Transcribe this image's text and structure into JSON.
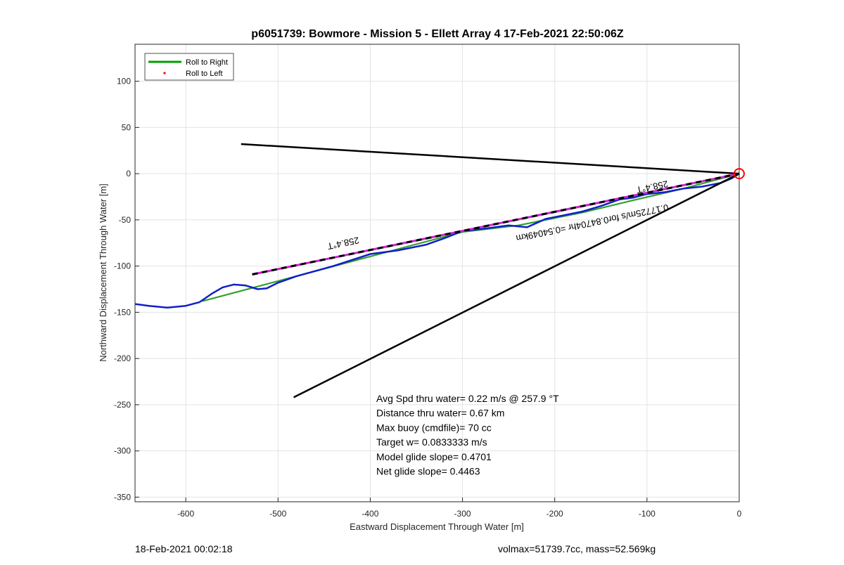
{
  "chart_data": {
    "type": "line",
    "title": "p6051739: Bowmore - Mission 5 - Ellett Array 4 17-Feb-2021 22:50:06Z",
    "xlabel": "Eastward Displacement Through Water [m]",
    "ylabel": "Northward Displacement Through Water [m]",
    "xlim": [
      -655,
      0
    ],
    "ylim": [
      -355,
      140
    ],
    "xticks": [
      -600,
      -500,
      -400,
      -300,
      -200,
      -100,
      0
    ],
    "yticks": [
      -350,
      -300,
      -250,
      -200,
      -150,
      -100,
      -50,
      0,
      50,
      100
    ],
    "grid": true,
    "legend": {
      "placement": "top-left",
      "entries": [
        {
          "label": "Roll to Right",
          "color": "#00a000",
          "style": "line"
        },
        {
          "label": "Roll to Left",
          "color": "#ff0000",
          "style": "dot"
        }
      ]
    },
    "series": [
      {
        "name": "Roll to Right",
        "color": "#33a02c",
        "x": [
          -582,
          -300,
          -240,
          -170,
          -120,
          -60,
          0
        ],
        "y": [
          -138,
          -63,
          -56,
          -42,
          -30,
          -16,
          0
        ]
      },
      {
        "color": "#1020c8",
        "x": [
          -655,
          -640,
          -620,
          -600,
          -585,
          -572,
          -560,
          -548,
          -535,
          -522,
          -512,
          -500,
          -480,
          -440,
          -400,
          -370,
          -340,
          -320,
          -300,
          -280,
          -250,
          -230,
          -210,
          -190,
          -170,
          -150,
          -130,
          -115,
          -100,
          -80,
          -60,
          -40,
          -20,
          -8,
          0
        ],
        "y": [
          -141,
          -143,
          -145,
          -143,
          -139,
          -130,
          -123,
          -120,
          -121,
          -125,
          -124,
          -118,
          -111,
          -100,
          -87,
          -83,
          -77,
          -70,
          -62,
          -60,
          -56,
          -58,
          -49,
          -45,
          -41,
          -35,
          -28,
          -26,
          -22,
          -20,
          -16,
          -14,
          -10,
          -5,
          0
        ]
      },
      {
        "color": "#000000",
        "x": [
          -540,
          0
        ],
        "y": [
          32,
          0
        ]
      },
      {
        "color": "#000000",
        "x": [
          -483,
          0
        ],
        "y": [
          -242,
          0
        ]
      },
      {
        "color": "#d020d0",
        "dashed": true,
        "x": [
          -528,
          0
        ],
        "y": [
          -109,
          0
        ]
      },
      {
        "color": "#ff0000",
        "marker": "circle",
        "x": [
          0
        ],
        "y": [
          0
        ]
      }
    ],
    "annotations": [
      {
        "text": "258.4°T",
        "x": -430,
        "y": -72,
        "rotation": 168.4
      },
      {
        "text": "258.4°T",
        "x": -95,
        "y": -11,
        "rotation": 168.4
      },
      {
        "text": "0.17725m/s for0.84704hr =0.54049km",
        "x": -160,
        "y": -50,
        "rotation": 168.4
      }
    ],
    "text_box": [
      "Avg Spd thru water=  0.22 m/s @ 257.9 °T",
      "Distance thru water=  0.67 km",
      "Max buoy (cmdfile)= 70 cc",
      "Target w= 0.0833333 m/s",
      "Model glide slope= 0.4701",
      "Net glide slope= 0.4463"
    ]
  },
  "footer": {
    "left": "18-Feb-2021 00:02:18",
    "right": "volmax=51739.7cc, mass=52.569kg"
  }
}
